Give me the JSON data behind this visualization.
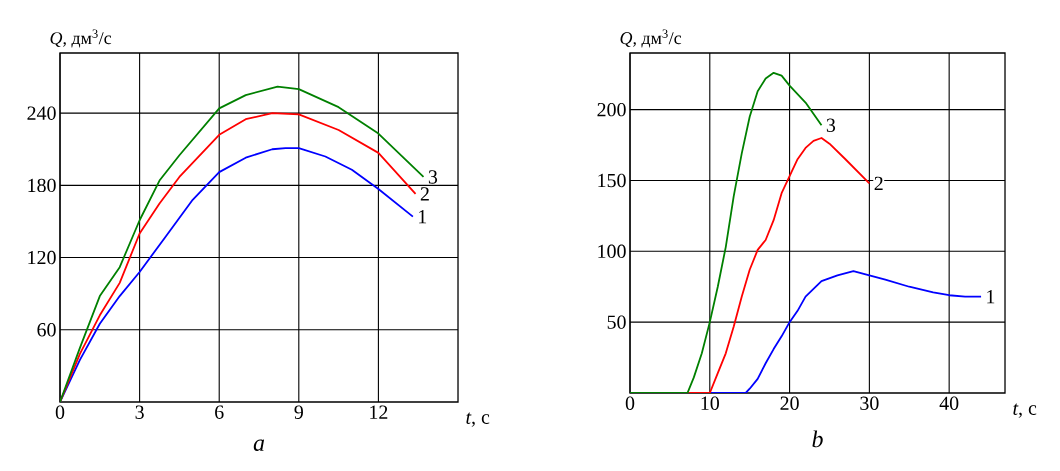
{
  "chart_data": [
    {
      "type": "line",
      "title": "a",
      "xlabel": "*t*, с",
      "ylabel": "*Q*, дм$^{3}$/с",
      "xlim": [
        0,
        15
      ],
      "ylim": [
        0,
        290
      ],
      "xticks": [
        0,
        3,
        6,
        9,
        12
      ],
      "yticks": [
        60,
        120,
        180,
        240
      ],
      "grid": true,
      "series": [
        {
          "name": "1",
          "color": "#0000ff",
          "x": [
            0,
            0.75,
            1.5,
            2.25,
            3,
            4,
            5,
            6,
            7,
            8,
            8.5,
            9,
            10,
            11,
            12,
            13.3
          ],
          "values": [
            0,
            35,
            65,
            88,
            108,
            138,
            168,
            191,
            203,
            210,
            211,
            211,
            204,
            193,
            177,
            154
          ]
        },
        {
          "name": "2",
          "color": "#ff0000",
          "x": [
            0,
            0.75,
            1.5,
            2.25,
            3,
            3.75,
            4.5,
            6,
            7,
            8,
            9,
            10.5,
            12,
            13.4
          ],
          "values": [
            0,
            40,
            72,
            99,
            140,
            165,
            187,
            222,
            235,
            240,
            239,
            226,
            207,
            173
          ]
        },
        {
          "name": "3",
          "color": "#008000",
          "x": [
            0,
            0.75,
            1.5,
            2.25,
            3,
            3.75,
            4.5,
            6,
            7,
            8.2,
            9,
            10.5,
            12,
            13.7
          ],
          "values": [
            0,
            45,
            88,
            112,
            151,
            184,
            205,
            244,
            255,
            262,
            260,
            245,
            223,
            187
          ]
        }
      ]
    },
    {
      "type": "line",
      "title": "b",
      "xlabel": "*t*, с",
      "ylabel": "*Q*, дм$^{3}$/с",
      "xlim": [
        0,
        47
      ],
      "ylim": [
        0,
        240
      ],
      "xticks": [
        0,
        10,
        20,
        30,
        40
      ],
      "yticks": [
        50,
        100,
        150,
        200
      ],
      "grid": true,
      "series": [
        {
          "name": "1",
          "color": "#0000ff",
          "x": [
            10,
            14.5,
            15,
            16,
            17,
            18,
            19,
            20,
            21,
            22,
            24,
            26,
            28,
            30,
            32,
            35,
            38,
            40,
            42,
            44
          ],
          "values": [
            0,
            0,
            3,
            10,
            21,
            31,
            40,
            50,
            58,
            68,
            79,
            83,
            86,
            83,
            80,
            75,
            71,
            69,
            68,
            68
          ]
        },
        {
          "name": "2",
          "color": "#ff0000",
          "x": [
            7.3,
            10,
            11,
            12,
            13,
            14,
            15,
            16,
            17,
            18,
            19,
            20,
            21,
            22,
            23,
            24,
            25,
            27,
            30
          ],
          "values": [
            0,
            0,
            14,
            28,
            47,
            68,
            87,
            101,
            108,
            122,
            141,
            153,
            165,
            173,
            178,
            180,
            176,
            165,
            148
          ]
        },
        {
          "name": "3",
          "color": "#008000",
          "x": [
            0,
            7.2,
            8,
            9,
            10,
            11,
            12,
            13,
            14,
            15,
            16,
            17,
            18,
            19,
            20,
            22,
            24
          ],
          "values": [
            0,
            0,
            11,
            28,
            50,
            75,
            103,
            139,
            169,
            195,
            213,
            222,
            226,
            224,
            217,
            205,
            189
          ]
        }
      ]
    }
  ]
}
